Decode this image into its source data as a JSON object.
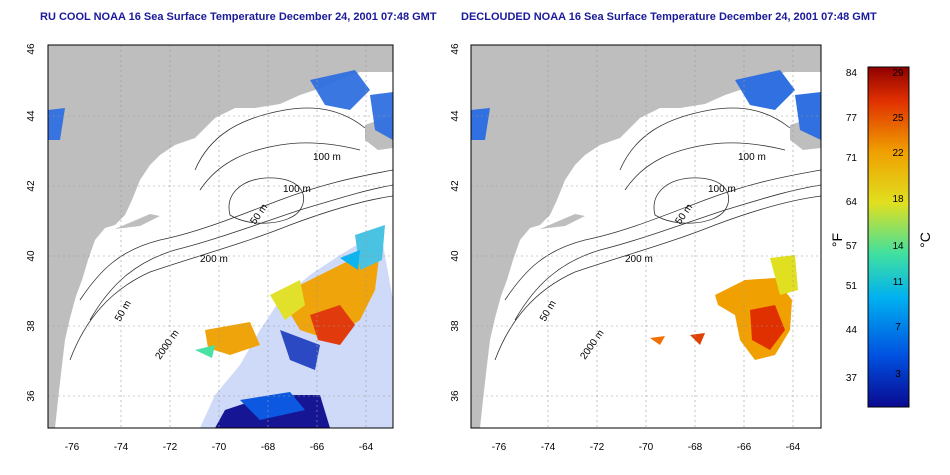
{
  "titles": {
    "left": "RU COOL NOAA 16 Sea Surface Temperature December 24, 2001 07:48 GMT",
    "right": "DECLOUDED NOAA 16 Sea Surface Temperature December 24, 2001 07:48 GMT"
  },
  "x_ticks": [
    "-76",
    "-74",
    "-72",
    "-70",
    "-68",
    "-66",
    "-64"
  ],
  "y_ticks": [
    "46",
    "44",
    "42",
    "40",
    "38",
    "36"
  ],
  "depth_labels": [
    "100 m",
    "100 m",
    "50 m",
    "200 m",
    "50 m",
    "2000 m"
  ],
  "colorbar": {
    "f_ticks": [
      "84",
      "77",
      "71",
      "64",
      "57",
      "51",
      "44",
      "37"
    ],
    "c_ticks": [
      "29",
      "25",
      "22",
      "18",
      "14",
      "11",
      "7",
      "3"
    ],
    "f_unit": "°F",
    "c_unit": "°C",
    "colors": [
      "#0a0a90",
      "#0050e0",
      "#00b0f0",
      "#40e0a0",
      "#e0e020",
      "#f0a000",
      "#e03000",
      "#900000"
    ]
  },
  "colors": {
    "land": "#bebebe",
    "ocean": "#ffffff",
    "title": "#1a1a9a"
  }
}
